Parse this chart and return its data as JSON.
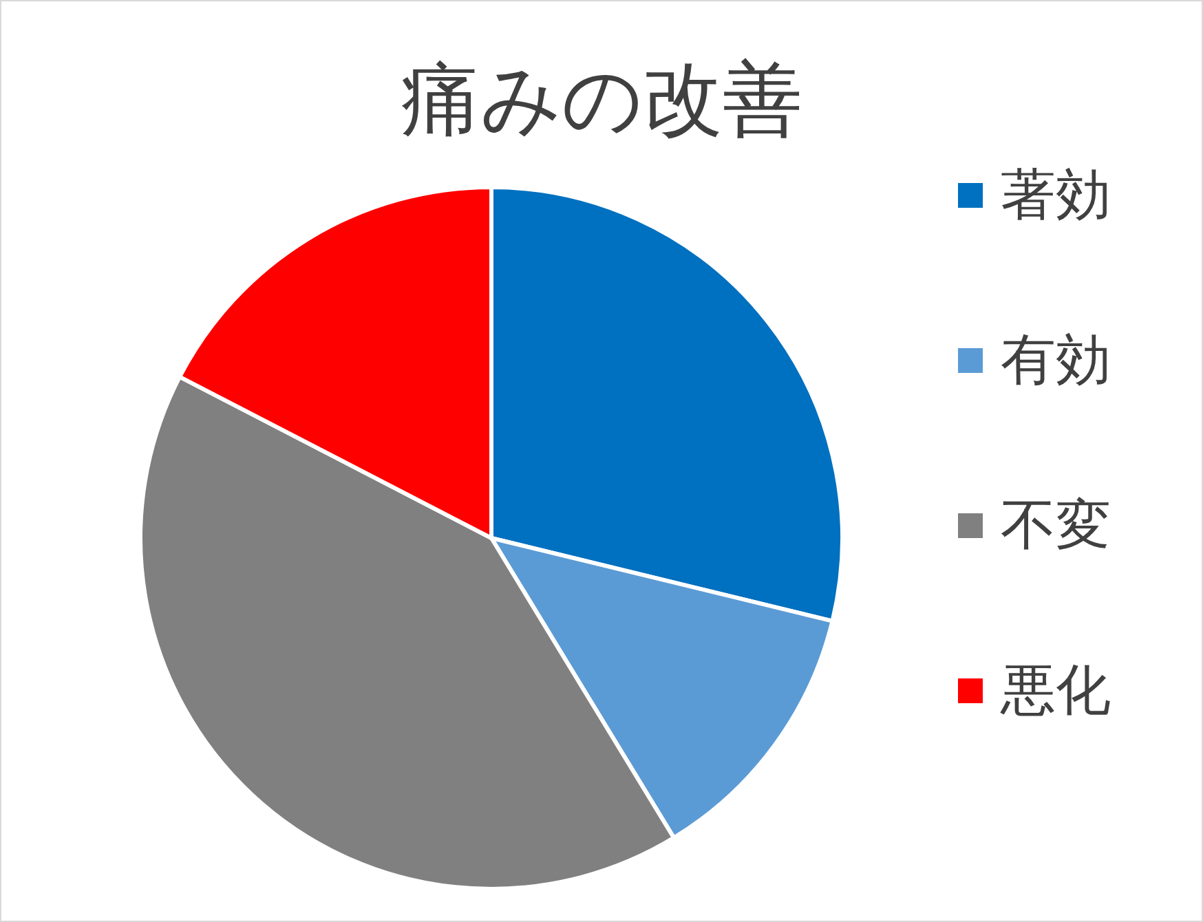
{
  "chart_data": {
    "type": "pie",
    "title": "痛みの改善",
    "categories": [
      "著効",
      "有効",
      "不変",
      "悪化"
    ],
    "values": [
      28.8,
      12.5,
      41.3,
      17.4
    ],
    "colors": [
      "#0070c0",
      "#5b9bd5",
      "#808080",
      "#ff0000"
    ],
    "legend": "right"
  }
}
